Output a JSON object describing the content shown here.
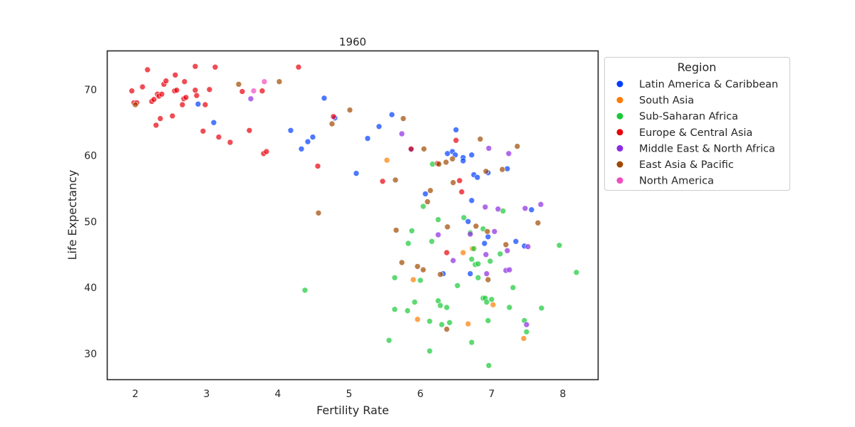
{
  "chart_data": {
    "type": "scatter",
    "title": "1960",
    "xlabel": "Fertility Rate",
    "ylabel": "Life Expectancy",
    "xlim": [
      1.6,
      8.5
    ],
    "ylim": [
      26,
      75.8
    ],
    "x_ticks": [
      2,
      3,
      4,
      5,
      6,
      7,
      8
    ],
    "y_ticks": [
      30,
      40,
      50,
      60,
      70
    ],
    "grid": false,
    "legend": {
      "title": "Region",
      "placement": "outside-right"
    },
    "series": [
      {
        "name": "Latin America & Caribbean",
        "color": "#023eff",
        "points": [
          [
            2.88,
            67.8
          ],
          [
            3.1,
            65.0
          ],
          [
            4.18,
            63.8
          ],
          [
            4.33,
            61.0
          ],
          [
            4.42,
            62.1
          ],
          [
            4.49,
            62.8
          ],
          [
            4.65,
            68.7
          ],
          [
            4.8,
            65.7
          ],
          [
            5.1,
            57.3
          ],
          [
            5.26,
            62.6
          ],
          [
            5.42,
            64.4
          ],
          [
            5.6,
            66.2
          ],
          [
            5.87,
            60.9
          ],
          [
            6.07,
            54.2
          ],
          [
            6.38,
            60.3
          ],
          [
            6.45,
            60.6
          ],
          [
            6.49,
            60.1
          ],
          [
            6.5,
            63.9
          ],
          [
            6.6,
            59.7
          ],
          [
            6.6,
            59.2
          ],
          [
            6.72,
            60.1
          ],
          [
            6.75,
            57.1
          ],
          [
            6.8,
            56.7
          ],
          [
            6.95,
            57.4
          ],
          [
            7.22,
            58.0
          ],
          [
            6.72,
            53.2
          ],
          [
            6.67,
            50.0
          ],
          [
            6.95,
            47.7
          ],
          [
            6.9,
            46.7
          ],
          [
            7.34,
            47.0
          ],
          [
            7.46,
            46.3
          ],
          [
            6.7,
            42.1
          ],
          [
            6.32,
            42.1
          ],
          [
            7.56,
            51.8
          ]
        ]
      },
      {
        "name": "South Asia",
        "color": "#ff7c00",
        "points": [
          [
            5.53,
            59.3
          ],
          [
            6.6,
            45.3
          ],
          [
            6.73,
            45.9
          ],
          [
            5.9,
            41.2
          ],
          [
            5.96,
            35.2
          ],
          [
            6.67,
            34.5
          ],
          [
            7.02,
            37.4
          ],
          [
            7.45,
            32.3
          ]
        ]
      },
      {
        "name": "Sub-Saharan Africa",
        "color": "#1ac938",
        "points": [
          [
            4.38,
            39.6
          ],
          [
            5.56,
            32.0
          ],
          [
            5.64,
            36.7
          ],
          [
            5.64,
            41.5
          ],
          [
            5.82,
            36.5
          ],
          [
            5.83,
            46.7
          ],
          [
            5.88,
            48.6
          ],
          [
            5.92,
            37.8
          ],
          [
            6.0,
            41.1
          ],
          [
            6.04,
            52.3
          ],
          [
            6.13,
            34.9
          ],
          [
            6.13,
            30.4
          ],
          [
            6.16,
            47.0
          ],
          [
            6.17,
            58.7
          ],
          [
            6.25,
            50.3
          ],
          [
            6.25,
            38.0
          ],
          [
            6.28,
            37.3
          ],
          [
            6.3,
            34.4
          ],
          [
            6.37,
            37.0
          ],
          [
            6.41,
            34.7
          ],
          [
            6.52,
            40.3
          ],
          [
            6.61,
            50.6
          ],
          [
            6.7,
            48.3
          ],
          [
            6.72,
            44.3
          ],
          [
            6.75,
            45.9
          ],
          [
            6.77,
            43.5
          ],
          [
            6.81,
            43.6
          ],
          [
            6.81,
            41.5
          ],
          [
            6.88,
            38.4
          ],
          [
            6.88,
            48.9
          ],
          [
            6.91,
            38.4
          ],
          [
            6.93,
            37.8
          ],
          [
            6.95,
            35.0
          ],
          [
            6.96,
            28.2
          ],
          [
            6.98,
            44.0
          ],
          [
            7.0,
            38.2
          ],
          [
            7.12,
            45.1
          ],
          [
            7.16,
            51.6
          ],
          [
            7.25,
            37.0
          ],
          [
            7.3,
            40.0
          ],
          [
            7.46,
            35.0
          ],
          [
            7.49,
            33.3
          ],
          [
            7.7,
            36.9
          ],
          [
            7.95,
            46.4
          ],
          [
            8.19,
            42.3
          ],
          [
            6.72,
            31.7
          ]
        ]
      },
      {
        "name": "Europe & Central Asia",
        "color": "#e8000b",
        "points": [
          [
            1.95,
            69.8
          ],
          [
            1.98,
            68.0
          ],
          [
            2.02,
            68.0
          ],
          [
            2.1,
            70.4
          ],
          [
            2.17,
            73.0
          ],
          [
            2.23,
            68.2
          ],
          [
            2.26,
            68.5
          ],
          [
            2.29,
            64.6
          ],
          [
            2.31,
            69.3
          ],
          [
            2.33,
            69.0
          ],
          [
            2.35,
            65.6
          ],
          [
            2.37,
            69.3
          ],
          [
            2.4,
            70.8
          ],
          [
            2.43,
            71.3
          ],
          [
            2.52,
            66.0
          ],
          [
            2.55,
            69.8
          ],
          [
            2.56,
            72.2
          ],
          [
            2.58,
            69.9
          ],
          [
            2.66,
            67.7
          ],
          [
            2.68,
            68.6
          ],
          [
            2.69,
            71.2
          ],
          [
            2.71,
            68.8
          ],
          [
            2.84,
            73.5
          ],
          [
            2.84,
            69.9
          ],
          [
            2.86,
            69.1
          ],
          [
            2.95,
            63.7
          ],
          [
            2.98,
            67.7
          ],
          [
            3.04,
            70.0
          ],
          [
            3.12,
            73.4
          ],
          [
            3.17,
            62.8
          ],
          [
            3.33,
            62.0
          ],
          [
            3.5,
            69.7
          ],
          [
            3.6,
            63.8
          ],
          [
            3.78,
            69.8
          ],
          [
            3.8,
            60.3
          ],
          [
            3.84,
            60.6
          ],
          [
            4.29,
            73.4
          ],
          [
            4.56,
            58.4
          ],
          [
            4.78,
            65.9
          ],
          [
            5.47,
            56.1
          ],
          [
            6.24,
            58.8
          ],
          [
            6.5,
            62.3
          ],
          [
            6.55,
            56.2
          ],
          [
            6.58,
            54.5
          ],
          [
            6.37,
            45.3
          ],
          [
            5.87,
            61.0
          ]
        ]
      },
      {
        "name": "Middle East & North Africa",
        "color": "#8b2be2",
        "points": [
          [
            3.62,
            68.6
          ],
          [
            5.74,
            63.3
          ],
          [
            6.25,
            48.0
          ],
          [
            6.46,
            44.1
          ],
          [
            6.7,
            48.1
          ],
          [
            6.91,
            52.2
          ],
          [
            6.92,
            45.0
          ],
          [
            6.93,
            42.1
          ],
          [
            6.96,
            61.1
          ],
          [
            7.04,
            48.5
          ],
          [
            7.09,
            51.9
          ],
          [
            7.2,
            42.6
          ],
          [
            7.22,
            45.6
          ],
          [
            7.24,
            60.3
          ],
          [
            7.25,
            42.7
          ],
          [
            7.47,
            52.0
          ],
          [
            7.51,
            46.2
          ],
          [
            7.49,
            34.4
          ],
          [
            7.69,
            52.6
          ]
        ]
      },
      {
        "name": "East Asia & Pacific",
        "color": "#9f4800",
        "points": [
          [
            2.0,
            67.7
          ],
          [
            3.45,
            70.8
          ],
          [
            4.02,
            71.2
          ],
          [
            4.57,
            51.3
          ],
          [
            4.76,
            64.8
          ],
          [
            5.01,
            66.9
          ],
          [
            5.65,
            56.3
          ],
          [
            5.66,
            48.7
          ],
          [
            5.74,
            43.8
          ],
          [
            5.76,
            65.6
          ],
          [
            5.96,
            43.2
          ],
          [
            6.04,
            42.7
          ],
          [
            6.05,
            61.0
          ],
          [
            6.1,
            53.0
          ],
          [
            6.14,
            54.7
          ],
          [
            6.26,
            58.7
          ],
          [
            6.28,
            42.0
          ],
          [
            6.36,
            59.0
          ],
          [
            6.37,
            33.7
          ],
          [
            6.38,
            49.2
          ],
          [
            6.45,
            59.5
          ],
          [
            6.46,
            55.9
          ],
          [
            6.78,
            49.3
          ],
          [
            6.84,
            62.5
          ],
          [
            6.92,
            57.6
          ],
          [
            6.94,
            48.5
          ],
          [
            6.95,
            41.2
          ],
          [
            7.15,
            57.9
          ],
          [
            7.2,
            46.5
          ],
          [
            7.36,
            61.4
          ],
          [
            7.65,
            49.8
          ]
        ]
      },
      {
        "name": "North America",
        "color": "#f14cc1",
        "points": [
          [
            3.66,
            69.8
          ],
          [
            3.81,
            71.2
          ]
        ]
      }
    ]
  }
}
